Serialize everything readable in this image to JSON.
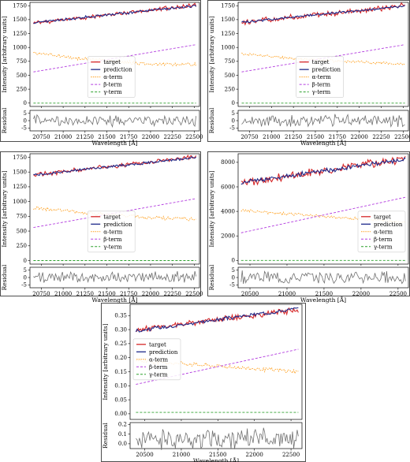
{
  "chart_data": [
    {
      "type": "line",
      "title": "",
      "ylabel": "Intensity [arbitrary units]",
      "xlabel": "Wavelength [Å]",
      "residual_label": "Residual",
      "xlim": [
        20620,
        22560
      ],
      "ylim": [
        -60,
        1810
      ],
      "yticks": [
        0,
        250,
        500,
        750,
        1000,
        1250,
        1500,
        1750
      ],
      "xticks": [
        20750,
        21000,
        21250,
        21500,
        21750,
        22000,
        22250,
        22500
      ],
      "resid_ylim": [
        -7,
        7
      ],
      "resid_yticks": [
        -5,
        0,
        5
      ],
      "legend_position": "center",
      "gap": [
        21900,
        22050
      ],
      "series": [
        {
          "name": "target",
          "color": "#d62728",
          "x": [
            20660,
            22520
          ],
          "y": [
            1440,
            1760
          ],
          "noise": 28
        },
        {
          "name": "prediction",
          "color": "#1f2a8a",
          "x": [
            20660,
            22520
          ],
          "y": [
            1445,
            1750
          ],
          "noise": 18
        },
        {
          "name": "α-term",
          "color": "#ff9f1c",
          "x": [
            20660,
            21250,
            22000,
            22520
          ],
          "y": [
            900,
            790,
            700,
            690
          ],
          "noise": 25
        },
        {
          "name": "β-term",
          "color": "#b33cdf",
          "x": [
            20660,
            22520
          ],
          "y": [
            560,
            1050
          ],
          "noise": 0
        },
        {
          "name": "γ-term",
          "color": "#2ca02c",
          "x": [
            20660,
            22520
          ],
          "y": [
            0,
            0
          ],
          "noise": 0
        }
      ],
      "residual": {
        "color": "#707070",
        "x": [
          20660,
          22520
        ],
        "amplitude": 4.5
      }
    },
    {
      "type": "line",
      "title": "",
      "ylabel": "Intensity [arbitrary units]",
      "xlabel": "Wavelength [Å]",
      "residual_label": "Residual",
      "xlim": [
        20620,
        22560
      ],
      "ylim": [
        -60,
        1810
      ],
      "yticks": [
        0,
        250,
        500,
        750,
        1000,
        1250,
        1500,
        1750
      ],
      "xticks": [
        20750,
        21000,
        21250,
        21500,
        21750,
        22000,
        22250,
        22500
      ],
      "resid_ylim": [
        -7,
        7
      ],
      "resid_yticks": [
        -5,
        0,
        5
      ],
      "legend_position": "center",
      "series": [
        {
          "name": "target",
          "color": "#d62728",
          "x": [
            20660,
            22520
          ],
          "y": [
            1450,
            1750
          ],
          "noise": 40
        },
        {
          "name": "prediction",
          "color": "#1f2a8a",
          "x": [
            20660,
            22520
          ],
          "y": [
            1450,
            1745
          ],
          "noise": 15
        },
        {
          "name": "α-term",
          "color": "#ff9f1c",
          "x": [
            20660,
            21250,
            22000,
            22520
          ],
          "y": [
            890,
            800,
            740,
            700
          ],
          "noise": 20
        },
        {
          "name": "β-term",
          "color": "#b33cdf",
          "x": [
            20660,
            22520
          ],
          "y": [
            560,
            1050
          ],
          "noise": 0
        },
        {
          "name": "γ-term",
          "color": "#2ca02c",
          "x": [
            20660,
            22520
          ],
          "y": [
            0,
            0
          ],
          "noise": 0
        }
      ],
      "residual": {
        "color": "#707070",
        "x": [
          20660,
          22520
        ],
        "amplitude": 5
      }
    },
    {
      "type": "line",
      "title": "",
      "ylabel": "Intensity [arbitrary units]",
      "xlabel": "Wavelength [Å]",
      "residual_label": "Residual",
      "xlim": [
        20620,
        22560
      ],
      "ylim": [
        -60,
        1810
      ],
      "yticks": [
        0,
        250,
        500,
        750,
        1000,
        1250,
        1500,
        1750
      ],
      "xticks": [
        20750,
        21000,
        21250,
        21500,
        21750,
        22000,
        22250,
        22500
      ],
      "resid_ylim": [
        -7,
        7
      ],
      "resid_yticks": [
        -5,
        0,
        5
      ],
      "legend_position": "center",
      "series": [
        {
          "name": "target",
          "color": "#d62728",
          "x": [
            20660,
            22520
          ],
          "y": [
            1450,
            1760
          ],
          "noise": 30
        },
        {
          "name": "prediction",
          "color": "#1f2a8a",
          "x": [
            20660,
            22520
          ],
          "y": [
            1450,
            1750
          ],
          "noise": 18
        },
        {
          "name": "α-term",
          "color": "#ff9f1c",
          "x": [
            20660,
            21250,
            22000,
            22520
          ],
          "y": [
            890,
            810,
            730,
            700
          ],
          "noise": 25
        },
        {
          "name": "β-term",
          "color": "#b33cdf",
          "x": [
            20660,
            22520
          ],
          "y": [
            560,
            1050
          ],
          "noise": 0
        },
        {
          "name": "γ-term",
          "color": "#2ca02c",
          "x": [
            20660,
            22520
          ],
          "y": [
            0,
            0
          ],
          "noise": 0
        }
      ],
      "residual": {
        "color": "#707070",
        "x": [
          20660,
          22520
        ],
        "amplitude": 4.5
      }
    },
    {
      "type": "line",
      "title": "",
      "ylabel": "Intensity [arbitrary units]",
      "xlabel": "Wavelength [Å]",
      "residual_label": "Residual",
      "xlim": [
        20340,
        22640
      ],
      "ylim": [
        -300,
        8700
      ],
      "yticks": [
        0,
        2000,
        4000,
        6000,
        8000
      ],
      "xticks": [
        20500,
        21000,
        21500,
        22000,
        22500
      ],
      "resid_ylim": [
        -7,
        7
      ],
      "resid_yticks": [
        -5,
        0,
        5
      ],
      "legend_position": "center right",
      "series": [
        {
          "name": "target",
          "color": "#d62728",
          "x": [
            20380,
            22600
          ],
          "y": [
            6300,
            8300
          ],
          "noise": 260
        },
        {
          "name": "prediction",
          "color": "#1f2a8a",
          "x": [
            20380,
            22600
          ],
          "y": [
            6350,
            8250
          ],
          "noise": 140
        },
        {
          "name": "α-term",
          "color": "#ff9f1c",
          "x": [
            20380,
            21500,
            22600
          ],
          "y": [
            4050,
            3600,
            3100
          ],
          "noise": 100
        },
        {
          "name": "β-term",
          "color": "#b33cdf",
          "x": [
            20380,
            22600
          ],
          "y": [
            2250,
            5150
          ],
          "noise": 0
        },
        {
          "name": "γ-term",
          "color": "#2ca02c",
          "x": [
            20380,
            22600
          ],
          "y": [
            0,
            0
          ],
          "noise": 0
        }
      ],
      "residual": {
        "color": "#707070",
        "x": [
          20380,
          22600
        ],
        "amplitude": 5
      }
    },
    {
      "type": "line",
      "title": "",
      "ylabel": "Intensity [arbitrary units]",
      "xlabel": "Wavelength [Å]",
      "residual_label": "Residual",
      "xlim": [
        20300,
        22650
      ],
      "ylim": [
        -0.02,
        0.39
      ],
      "yticks": [
        0.0,
        0.05,
        0.1,
        0.15,
        0.2,
        0.25,
        0.3,
        0.35
      ],
      "ytick_decimals": 2,
      "xticks": [
        20500,
        21000,
        21500,
        22000,
        22500
      ],
      "resid_ylim": [
        -0.05,
        0.22
      ],
      "resid_yticks": [
        0.0,
        0.1,
        0.2
      ],
      "resid_tick_decimals": 1,
      "legend_position": "center left",
      "series": [
        {
          "name": "target",
          "color": "#d62728",
          "x": [
            20380,
            22600
          ],
          "y": [
            0.3,
            0.37
          ],
          "noise": 0.008
        },
        {
          "name": "prediction",
          "color": "#1f2a8a",
          "x": [
            20380,
            22600
          ],
          "y": [
            0.295,
            0.375
          ],
          "noise": 0.005
        },
        {
          "name": "α-term",
          "color": "#ff9f1c",
          "x": [
            20380,
            21500,
            22600
          ],
          "y": [
            0.19,
            0.17,
            0.15
          ],
          "noise": 0.006
        },
        {
          "name": "β-term",
          "color": "#b33cdf",
          "x": [
            20380,
            22600
          ],
          "y": [
            0.105,
            0.23
          ],
          "noise": 0
        },
        {
          "name": "γ-term",
          "color": "#2ca02c",
          "x": [
            20380,
            22600
          ],
          "y": [
            0.005,
            0.005
          ],
          "noise": 0
        }
      ],
      "residual": {
        "color": "#707070",
        "x": [
          20380,
          22600
        ],
        "amplitude": 0.12,
        "offset": 0.05
      }
    }
  ]
}
